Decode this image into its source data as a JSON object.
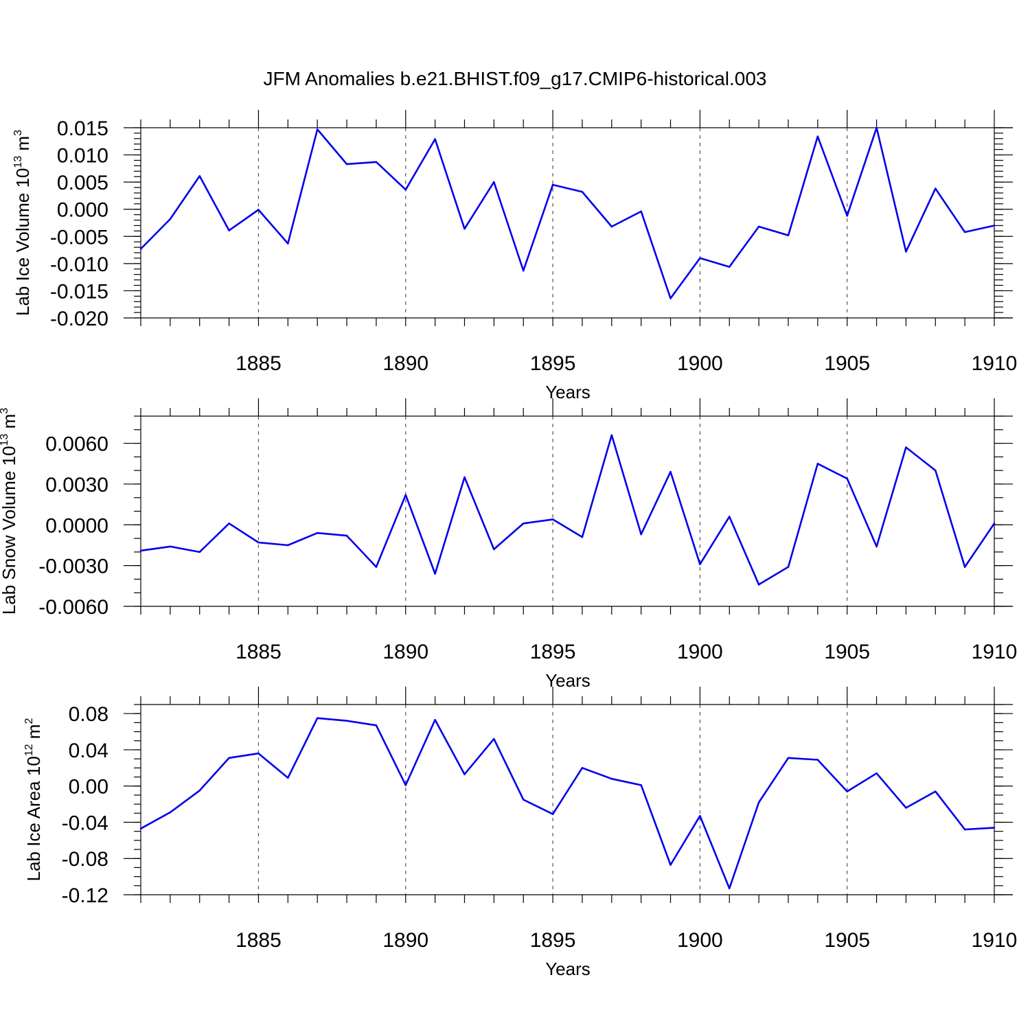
{
  "chart_data": {
    "title": "JFM Anomalies b.e21.BHIST.f09_g17.CMIP6-historical.003",
    "line_color": "#0000ee",
    "panels": [
      {
        "type": "line",
        "ylabel": "Lab Ice Volume 10",
        "ylabel_exp": "13",
        "ylabel_unit": " m",
        "ylabel_unit_exp": "3",
        "xlabel": "Years",
        "xlim": [
          1881,
          1910
        ],
        "ylim": [
          -0.02,
          0.015
        ],
        "yticks": [
          0.015,
          0.01,
          0.005,
          0.0,
          -0.005,
          -0.01,
          -0.015,
          -0.02
        ],
        "ytick_labels": [
          "0.015",
          "0.010",
          "0.005",
          "0.000",
          "-0.005",
          "-0.010",
          "-0.015",
          "-0.020"
        ],
        "yminor_step": 0.001,
        "xticks": [
          1885,
          1890,
          1895,
          1900,
          1905,
          1910
        ],
        "xtick_labels": [
          "1885",
          "1890",
          "1895",
          "1900",
          "1905",
          "1910"
        ],
        "x": [
          1881,
          1882,
          1883,
          1884,
          1885,
          1886,
          1887,
          1888,
          1889,
          1890,
          1891,
          1892,
          1893,
          1894,
          1895,
          1896,
          1897,
          1898,
          1899,
          1900,
          1901,
          1902,
          1903,
          1904,
          1905,
          1906,
          1907,
          1908,
          1909,
          1910
        ],
        "values": [
          -0.0073,
          -0.0018,
          0.0061,
          -0.0039,
          -0.0001,
          -0.0063,
          0.0147,
          0.0083,
          0.0087,
          0.0036,
          0.0129,
          -0.0036,
          0.005,
          -0.0113,
          0.0045,
          0.0032,
          -0.0032,
          -0.0004,
          -0.0164,
          -0.009,
          -0.0106,
          -0.0032,
          -0.0048,
          0.0134,
          -0.0012,
          0.015,
          -0.0078,
          0.0038,
          -0.0042,
          -0.003
        ]
      },
      {
        "type": "line",
        "ylabel": "Lab Snow Volume 10",
        "ylabel_exp": "13",
        "ylabel_unit": " m",
        "ylabel_unit_exp": "3",
        "xlabel": "Years",
        "xlim": [
          1881,
          1910
        ],
        "ylim": [
          -0.006,
          0.008
        ],
        "yticks": [
          0.006,
          0.003,
          0.0,
          -0.003,
          -0.006
        ],
        "ytick_labels": [
          "0.0060",
          "0.0030",
          "0.0000",
          "-0.0030",
          "-0.0060"
        ],
        "yminor_step": 0.001,
        "xticks": [
          1885,
          1890,
          1895,
          1900,
          1905,
          1910
        ],
        "xtick_labels": [
          "1885",
          "1890",
          "1895",
          "1900",
          "1905",
          "1910"
        ],
        "x": [
          1881,
          1882,
          1883,
          1884,
          1885,
          1886,
          1887,
          1888,
          1889,
          1890,
          1891,
          1892,
          1893,
          1894,
          1895,
          1896,
          1897,
          1898,
          1899,
          1900,
          1901,
          1902,
          1903,
          1904,
          1905,
          1906,
          1907,
          1908,
          1909,
          1910
        ],
        "values": [
          -0.0019,
          -0.0016,
          -0.002,
          0.0001,
          -0.0013,
          -0.0015,
          -0.0006,
          -0.0008,
          -0.0031,
          0.0022,
          -0.0036,
          0.0035,
          -0.0018,
          0.0001,
          0.0004,
          -0.0009,
          0.0066,
          -0.0007,
          0.0039,
          -0.0029,
          0.0006,
          -0.0044,
          -0.0031,
          0.0045,
          0.0034,
          -0.0016,
          0.0057,
          0.004,
          -0.0031,
          0.0001
        ]
      },
      {
        "type": "line",
        "ylabel": "Lab Ice Area 10",
        "ylabel_exp": "12",
        "ylabel_unit": " m",
        "ylabel_unit_exp": "2",
        "xlabel": "Years",
        "xlim": [
          1881,
          1910
        ],
        "ylim": [
          -0.12,
          0.09
        ],
        "yticks": [
          0.08,
          0.04,
          0.0,
          -0.04,
          -0.08,
          -0.12
        ],
        "ytick_labels": [
          "0.08",
          "0.04",
          "0.00",
          "-0.04",
          "-0.08",
          "-0.12"
        ],
        "yminor_step": 0.01,
        "xticks": [
          1885,
          1890,
          1895,
          1900,
          1905,
          1910
        ],
        "xtick_labels": [
          "1885",
          "1890",
          "1895",
          "1900",
          "1905",
          "1910"
        ],
        "x": [
          1881,
          1882,
          1883,
          1884,
          1885,
          1886,
          1887,
          1888,
          1889,
          1890,
          1891,
          1892,
          1893,
          1894,
          1895,
          1896,
          1897,
          1898,
          1899,
          1900,
          1901,
          1902,
          1903,
          1904,
          1905,
          1906,
          1907,
          1908,
          1909,
          1910
        ],
        "values": [
          -0.047,
          -0.029,
          -0.005,
          0.031,
          0.036,
          0.009,
          0.075,
          0.072,
          0.067,
          0.001,
          0.073,
          0.013,
          0.052,
          -0.015,
          -0.031,
          0.02,
          0.008,
          0.001,
          -0.087,
          -0.033,
          -0.113,
          -0.018,
          0.031,
          0.029,
          -0.006,
          0.014,
          -0.024,
          -0.006,
          -0.048,
          -0.046
        ]
      }
    ]
  }
}
